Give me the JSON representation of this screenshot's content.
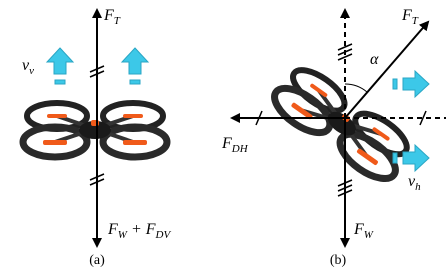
{
  "panels": [
    {
      "caption": "(a)",
      "labels": [
        {
          "segments": [
            {
              "text": "F",
              "sub": "T"
            }
          ]
        },
        {
          "segments": [
            {
              "text": "v",
              "sub": "v"
            }
          ]
        },
        {
          "segments": [
            {
              "text": "F",
              "sub": "W"
            },
            {
              "text": " + F",
              "sub": "DV"
            }
          ]
        }
      ]
    },
    {
      "caption": "(b)",
      "labels": [
        {
          "segments": [
            {
              "text": "F",
              "sub": "T"
            }
          ]
        },
        {
          "segments": [
            {
              "text": "α"
            }
          ]
        },
        {
          "segments": [
            {
              "text": "F",
              "sub": "DH"
            }
          ]
        },
        {
          "segments": [
            {
              "text": "v",
              "sub": "h"
            }
          ]
        },
        {
          "segments": [
            {
              "text": "F",
              "sub": "W"
            }
          ]
        }
      ]
    }
  ]
}
